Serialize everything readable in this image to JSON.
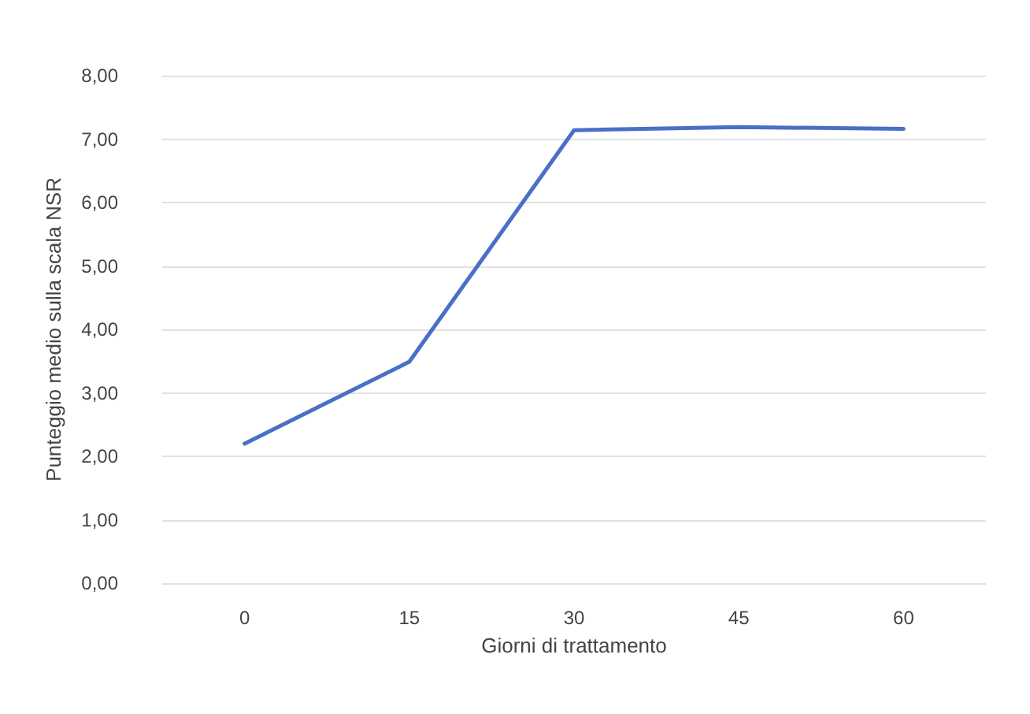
{
  "chart_data": {
    "type": "line",
    "xlabel": "Giorni di trattamento",
    "ylabel": "Punteggio medio sulla scala NSR",
    "categories": [
      "0",
      "15",
      "30",
      "45",
      "60"
    ],
    "series": [
      {
        "color": "#4a70c6",
        "values": [
          2.2,
          3.49,
          7.14,
          7.19,
          7.16
        ]
      }
    ],
    "ylim": [
      0,
      8
    ],
    "yticks": [
      {
        "value": 0,
        "label": "0,00"
      },
      {
        "value": 1,
        "label": "1,00"
      },
      {
        "value": 2,
        "label": "2,00"
      },
      {
        "value": 3,
        "label": "3,00"
      },
      {
        "value": 4,
        "label": "4,00"
      },
      {
        "value": 5,
        "label": "5,00"
      },
      {
        "value": 6,
        "label": "6,00"
      },
      {
        "value": 7,
        "label": "7,00"
      },
      {
        "value": 8,
        "label": "8,00"
      }
    ],
    "grid": "y",
    "marker": "none",
    "line_style": "solid"
  }
}
